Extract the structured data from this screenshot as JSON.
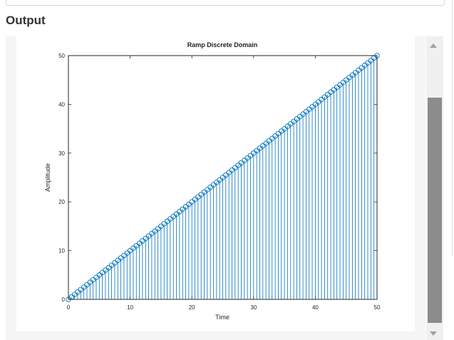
{
  "output_section": {
    "heading": "Output"
  },
  "chart_data": {
    "type": "stem",
    "title": "Ramp Discrete Domain",
    "xlabel": "Time",
    "ylabel": "Amplitude",
    "xlim": [
      0,
      50
    ],
    "ylim": [
      0,
      50
    ],
    "x_ticks": [
      0,
      10,
      20,
      30,
      40,
      50
    ],
    "y_ticks": [
      0,
      10,
      20,
      30,
      40,
      50
    ],
    "series": [
      {
        "x_start": 0,
        "x_end": 50,
        "x_step": 0.5,
        "relation": "y = x",
        "color": "#0072bd",
        "marker": "circle-open"
      }
    ],
    "grid": false,
    "legend": "none"
  }
}
